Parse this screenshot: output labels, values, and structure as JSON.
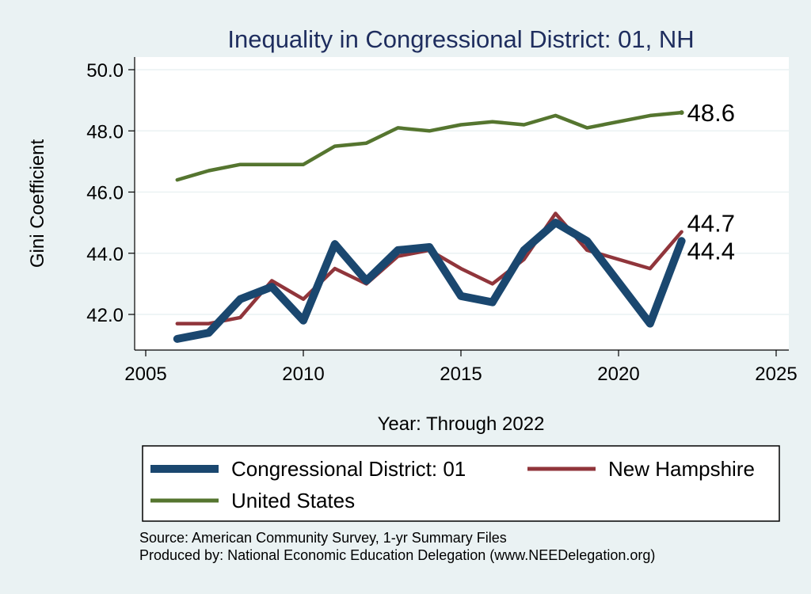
{
  "chart_data": {
    "type": "line",
    "title": "Inequality in Congressional District:  01, NH",
    "xlabel": "Year: Through 2022",
    "ylabel": "Gini Coefficient",
    "xlim": [
      2005,
      2025
    ],
    "ylim": [
      41.2,
      50.0
    ],
    "xticks": [
      2005,
      2010,
      2015,
      2020,
      2025
    ],
    "yticks": [
      42.0,
      44.0,
      46.0,
      48.0,
      50.0
    ],
    "grid": true,
    "legend_position": "bottom",
    "x": [
      2006,
      2007,
      2008,
      2009,
      2010,
      2011,
      2012,
      2013,
      2014,
      2015,
      2016,
      2017,
      2018,
      2019,
      2021,
      2022
    ],
    "series": [
      {
        "name": "Congressional District:  01",
        "color": "#1a476f",
        "values": [
          41.2,
          41.4,
          42.5,
          42.9,
          41.8,
          44.3,
          43.1,
          44.1,
          44.2,
          42.6,
          42.4,
          44.1,
          45.0,
          44.4,
          41.7,
          44.4
        ],
        "end_label": "44.4"
      },
      {
        "name": "New Hampshire",
        "color": "#90353b",
        "values": [
          41.7,
          41.7,
          41.9,
          43.1,
          42.5,
          43.5,
          43.0,
          43.9,
          44.1,
          43.5,
          43.0,
          43.8,
          45.3,
          44.1,
          43.5,
          44.7
        ],
        "end_label": "44.7"
      },
      {
        "name": "United States",
        "color": "#55752f",
        "values": [
          46.4,
          46.7,
          46.9,
          46.9,
          46.9,
          47.5,
          47.6,
          48.1,
          48.0,
          48.2,
          48.3,
          48.2,
          48.5,
          48.1,
          48.5,
          48.6
        ],
        "end_label": "48.6"
      }
    ]
  },
  "footer": {
    "source": "Source: American Community Survey, 1-yr Summary Files",
    "produced": "Produced by: National Economic Education Delegation (www.NEEDelegation.org)"
  }
}
